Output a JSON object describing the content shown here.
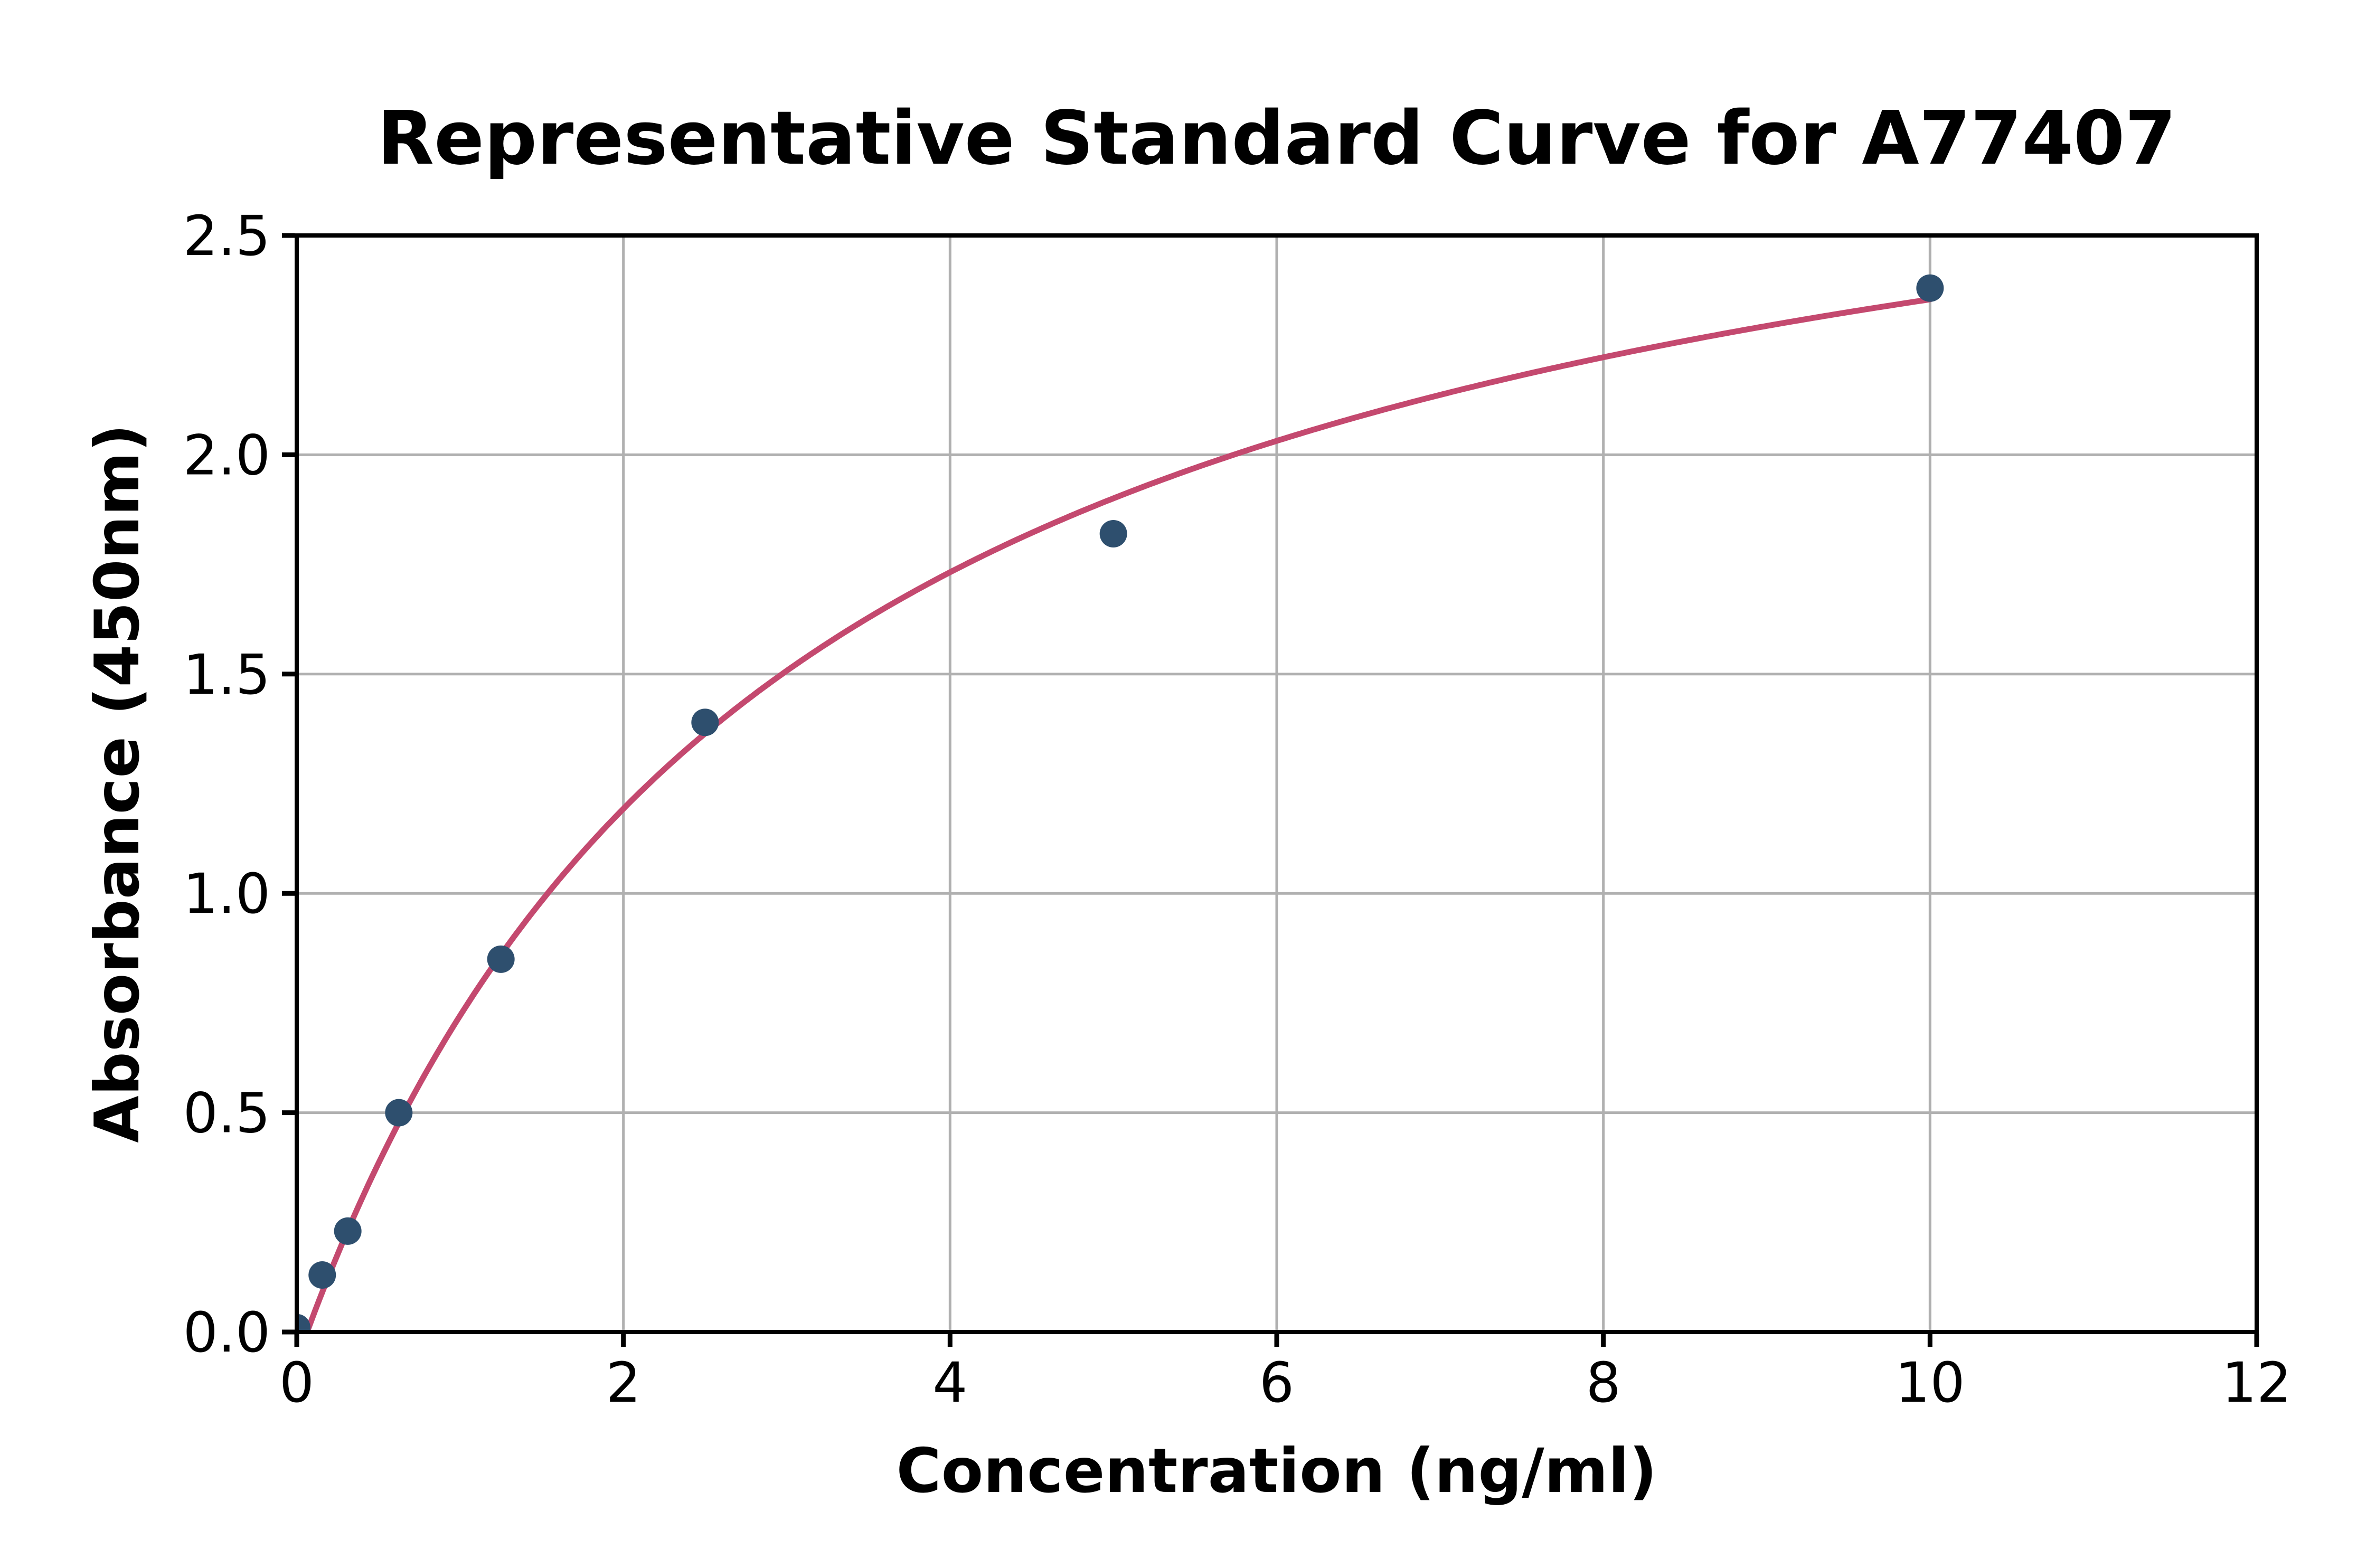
{
  "chart_data": {
    "type": "scatter",
    "title": "Representative Standard Curve for A77407",
    "xlabel": "Concentration (ng/ml)",
    "ylabel": "Absorbance (450nm)",
    "xlim": [
      0,
      12
    ],
    "ylim": [
      0,
      2.5
    ],
    "xticks": [
      0,
      2,
      4,
      6,
      8,
      10,
      12
    ],
    "xtick_labels": [
      "0",
      "2",
      "4",
      "6",
      "8",
      "10",
      "12"
    ],
    "yticks": [
      0.0,
      0.5,
      1.0,
      1.5,
      2.0,
      2.5
    ],
    "ytick_labels": [
      "0.0",
      "0.5",
      "1.0",
      "1.5",
      "2.0",
      "2.5"
    ],
    "grid": true,
    "legend": null,
    "series": [
      {
        "name": "standard-points",
        "type": "scatter",
        "x": [
          0,
          0.156,
          0.3125,
          0.625,
          1.25,
          2.5,
          5,
          10
        ],
        "y": [
          0.01,
          0.13,
          0.23,
          0.5,
          0.85,
          1.39,
          1.82,
          2.38
        ],
        "color": "#2e4f6e"
      },
      {
        "name": "fitted-curve",
        "type": "line",
        "color": "#c4496f",
        "fit": {
          "model": "y = a - b / (1 + x / c)",
          "a": 3.08,
          "b": 3.145,
          "c": 3.0,
          "x_start": 0.0633,
          "x_end": 10
        }
      }
    ],
    "colors": {
      "point": "#2e4f6e",
      "curve": "#c4496f",
      "grid": "#b0b0b0",
      "axis": "#000000",
      "background": "#ffffff"
    }
  }
}
